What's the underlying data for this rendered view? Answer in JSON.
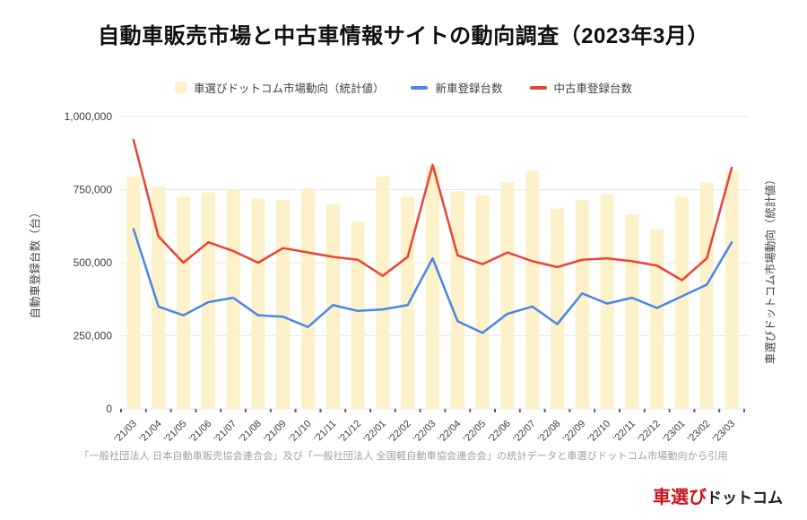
{
  "title": "自動車販売市場と中古車情報サイトの動向調査（2023年3月）",
  "legend": {
    "items": [
      {
        "label": "車選びドットコム市場動向（統計値）",
        "color": "#FCF1C9",
        "type": "bar-swatch"
      },
      {
        "label": "新車登録台数",
        "color": "#4A86E8",
        "type": "line-swatch"
      },
      {
        "label": "中古車登録台数",
        "color": "#EA4335",
        "type": "line-swatch"
      }
    ]
  },
  "axes": {
    "y_left_title": "自動車登録台数（台）",
    "y_right_title": "車選びドットコム市場動向（統計値）"
  },
  "footer": {
    "source": "「一般社団法人 日本自動車販売協会連合会」及び「一般社団法人 全国軽自動車協会連合会」の統計データと車選びドットコム市場動向から引用"
  },
  "logo": {
    "part1_red": "車選び",
    "part2_dark": "ドットコム"
  },
  "colors": {
    "bar_fill": "#FCF1C9",
    "new_car_line": "#4A86E8",
    "used_car_line": "#EA4335",
    "gridline": "#E8E8E8",
    "tick_mark": "#616161",
    "logo_red": "#C9151E"
  },
  "chart_data": {
    "type": "bar",
    "title": "自動車販売市場と中古車情報サイトの動向調査（2023年3月）",
    "xlabel": "",
    "ylabel": "自動車登録台数（台）",
    "ylabel_right": "車選びドットコム市場動向（統計値）",
    "ylim": [
      0,
      1000000
    ],
    "yticks": [
      0,
      250000,
      500000,
      750000,
      1000000
    ],
    "grid": true,
    "legend_position": "top",
    "categories": [
      "’21/03",
      "’21/04",
      "’21/05",
      "’21/06",
      "’21/07",
      "’21/08",
      "’21/09",
      "’21/10",
      "’21/11",
      "’21/12",
      "’22/01",
      "’22/02",
      "’22/03",
      "’22/04",
      "’22/05",
      "’22/06",
      "’22/07",
      "’22/08",
      "’22/09",
      "’22/10",
      "’22/11",
      "’22/12",
      "’23/01",
      "’23/02",
      "’23/03"
    ],
    "series": [
      {
        "name": "車選びドットコム市場動向（統計値）",
        "type": "bar",
        "color": "#FCF1C9",
        "values": [
          795000,
          760000,
          725000,
          740000,
          750000,
          720000,
          715000,
          755000,
          700000,
          640000,
          795000,
          725000,
          830000,
          745000,
          730000,
          775000,
          815000,
          685000,
          715000,
          735000,
          665000,
          615000,
          725000,
          775000,
          815000
        ]
      },
      {
        "name": "新車登録台数",
        "type": "line",
        "color": "#4A86E8",
        "values": [
          615000,
          350000,
          320000,
          365000,
          380000,
          320000,
          315000,
          280000,
          355000,
          335000,
          340000,
          355000,
          515000,
          300000,
          260000,
          325000,
          350000,
          290000,
          395000,
          360000,
          380000,
          345000,
          385000,
          425000,
          570000
        ]
      },
      {
        "name": "中古車登録台数",
        "type": "line",
        "color": "#EA4335",
        "values": [
          920000,
          590000,
          500000,
          570000,
          540000,
          500000,
          550000,
          535000,
          520000,
          510000,
          455000,
          520000,
          835000,
          525000,
          495000,
          535000,
          505000,
          485000,
          510000,
          515000,
          505000,
          490000,
          440000,
          515000,
          825000
        ]
      }
    ]
  }
}
